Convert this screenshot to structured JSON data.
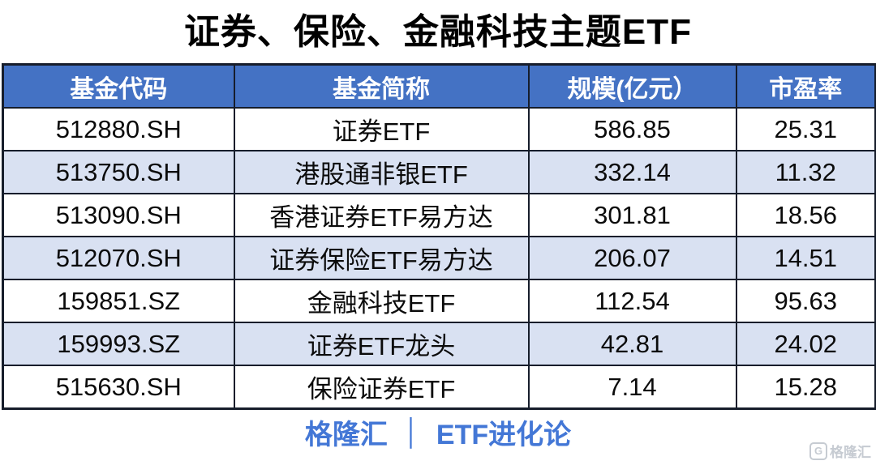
{
  "title": "证券、保险、金融科技主题ETF",
  "table": {
    "headers": [
      "基金代码",
      "基金简称",
      "规模(亿元）",
      "市盈率"
    ],
    "rows": [
      [
        "512880.SH",
        "证券ETF",
        "586.85",
        "25.31"
      ],
      [
        "513750.SH",
        "港股通非银ETF",
        "332.14",
        "11.32"
      ],
      [
        "513090.SH",
        "香港证券ETF易方达",
        "301.81",
        "18.56"
      ],
      [
        "512070.SH",
        "证券保险ETF易方达",
        "206.07",
        "14.51"
      ],
      [
        "159851.SZ",
        "金融科技ETF",
        "112.54",
        "95.63"
      ],
      [
        "159993.SZ",
        "证券ETF龙头",
        "42.81",
        "24.02"
      ],
      [
        "515630.SH",
        "保险证券ETF",
        "7.14",
        "15.28"
      ]
    ]
  },
  "footer": {
    "brand": "格隆汇",
    "separator": "│",
    "channel": "ETF进化论"
  },
  "watermark": {
    "icon": "G",
    "text": "格隆汇"
  },
  "colors": {
    "header_bg": "#4472C4",
    "alt_row_bg": "#D9E1F2",
    "border": "#161d2b",
    "footer_text": "#4377D6",
    "title_text": "#000000"
  },
  "chart_data": {
    "type": "table",
    "title": "证券、保险、金融科技主题ETF",
    "columns": [
      "基金代码",
      "基金简称",
      "规模(亿元）",
      "市盈率"
    ],
    "rows": [
      {
        "基金代码": "512880.SH",
        "基金简称": "证券ETF",
        "规模(亿元）": 586.85,
        "市盈率": 25.31
      },
      {
        "基金代码": "513750.SH",
        "基金简称": "港股通非银ETF",
        "规模(亿元）": 332.14,
        "市盈率": 11.32
      },
      {
        "基金代码": "513090.SH",
        "基金简称": "香港证券ETF易方达",
        "规模(亿元）": 301.81,
        "市盈率": 18.56
      },
      {
        "基金代码": "512070.SH",
        "基金简称": "证券保险ETF易方达",
        "规模(亿元）": 206.07,
        "市盈率": 14.51
      },
      {
        "基金代码": "159851.SZ",
        "基金简称": "金融科技ETF",
        "规模(亿元）": 112.54,
        "市盈率": 95.63
      },
      {
        "基金代码": "159993.SZ",
        "基金简称": "证券ETF龙头",
        "规模(亿元）": 42.81,
        "市盈率": 24.02
      },
      {
        "基金代码": "515630.SH",
        "基金简称": "保险证券ETF",
        "规模(亿元）": 7.14,
        "市盈率": 15.28
      }
    ],
    "layout_hints": {
      "header_style": "blue banner, white bold text",
      "row_striping": "white / light periwinkle alternating",
      "grid": "dark navy borders on all cells"
    }
  }
}
